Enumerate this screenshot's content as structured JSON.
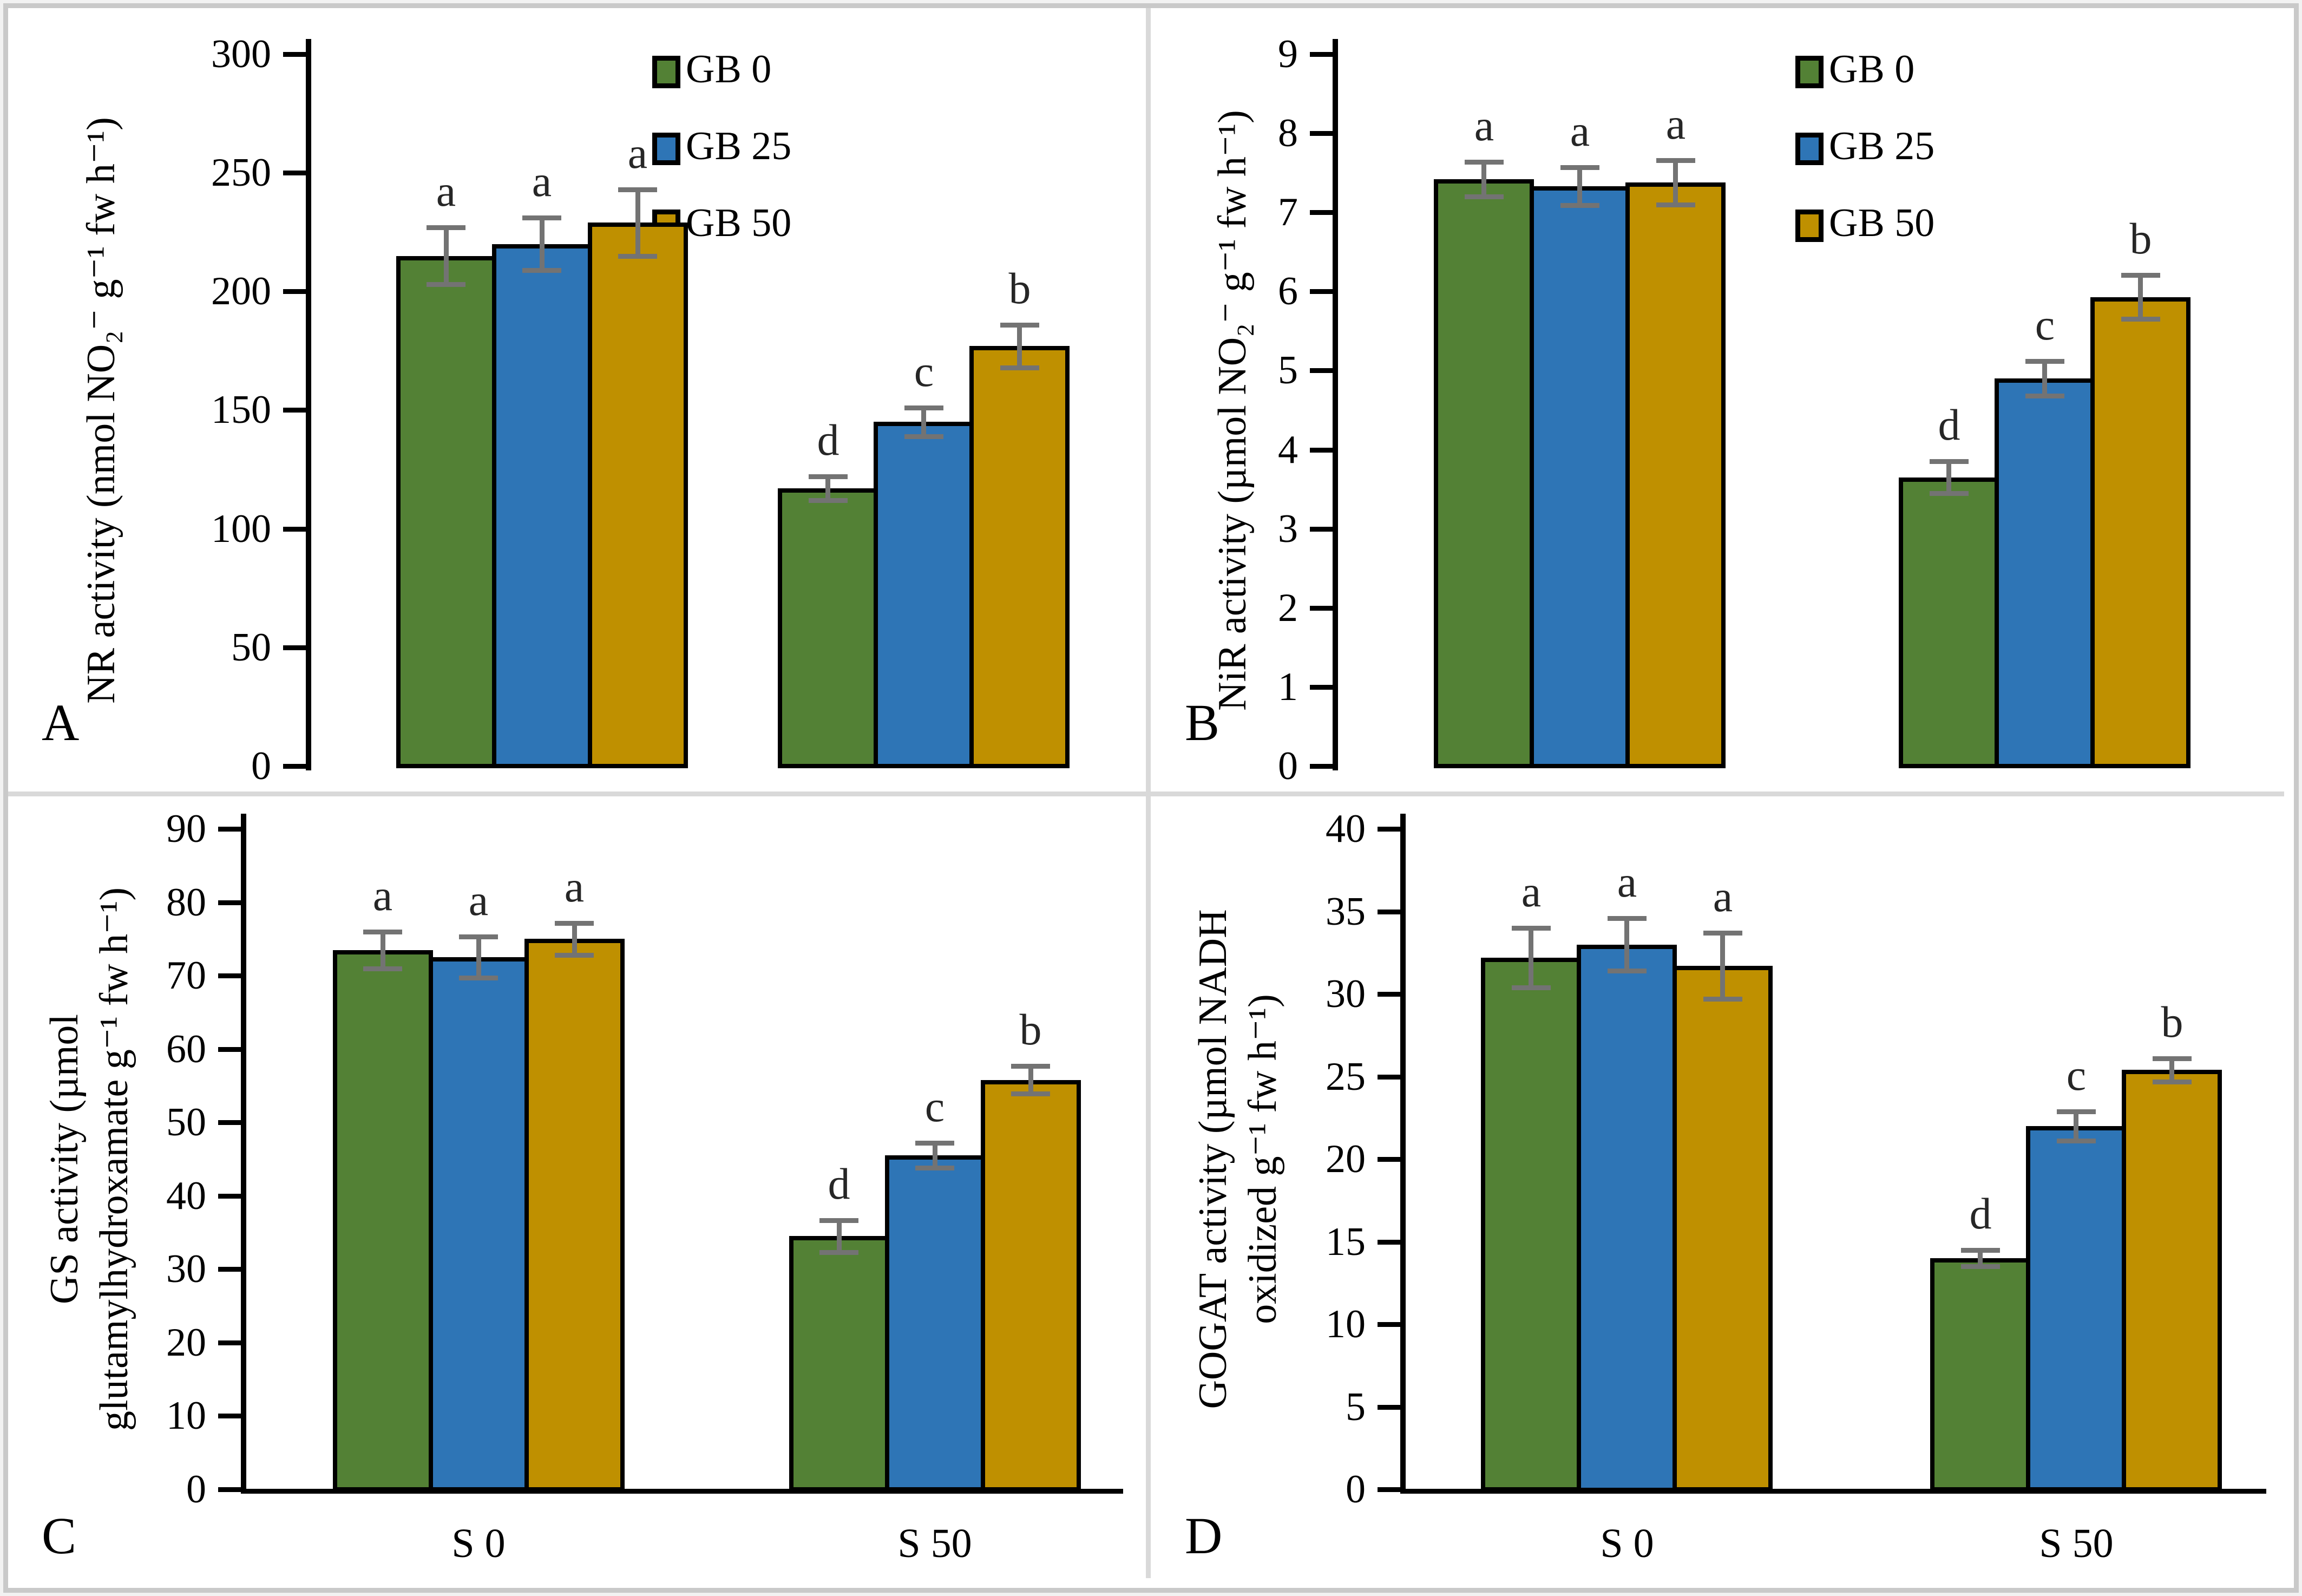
{
  "figure": {
    "panel_letters": [
      "A",
      "B",
      "C",
      "D"
    ],
    "legend": {
      "items": [
        {
          "label": "GB 0"
        },
        {
          "label": "GB 25"
        },
        {
          "label": "GB 50"
        }
      ]
    },
    "colors": {
      "gb0_green": "#538135",
      "gb25_blue": "#2E75B6",
      "gb50_gold": "#BF9000",
      "error_bar": "#737373",
      "significance_letter": "#262626",
      "axis": "#000000",
      "frame": "#c9c9c9"
    }
  },
  "chart_data": [
    {
      "type": "bar",
      "panel": "A",
      "ylabel_lines": [
        "NR activity (nmol NO₂⁻ g⁻¹ fw h⁻¹)"
      ],
      "ylim": [
        0,
        300
      ],
      "ytick_step": 50,
      "yticks": [
        0,
        50,
        100,
        150,
        200,
        250,
        300
      ],
      "categories": [
        "S 0",
        "S 50"
      ],
      "category_labels_shown": false,
      "xaxis_line_shown": false,
      "legend_shown": true,
      "grid": false,
      "series": [
        {
          "name": "GB 0",
          "values": [
            215,
            117
          ],
          "errors": [
            12,
            5
          ],
          "letters": [
            "a",
            "d"
          ]
        },
        {
          "name": "GB 25",
          "values": [
            220,
            145
          ],
          "errors": [
            11,
            6
          ],
          "letters": [
            "a",
            "c"
          ]
        },
        {
          "name": "GB 50",
          "values": [
            229,
            177
          ],
          "errors": [
            14,
            9
          ],
          "letters": [
            "a",
            "b"
          ]
        }
      ]
    },
    {
      "type": "bar",
      "panel": "B",
      "ylabel_lines": [
        "NiR activity (µmol NO₂⁻ g⁻¹ fw h⁻¹)"
      ],
      "ylim": [
        0,
        9
      ],
      "ytick_step": 1,
      "yticks": [
        0,
        1,
        2,
        3,
        4,
        5,
        6,
        7,
        8,
        9
      ],
      "categories": [
        "S 0",
        "S 50"
      ],
      "category_labels_shown": false,
      "xaxis_line_shown": false,
      "legend_shown": true,
      "grid": false,
      "series": [
        {
          "name": "GB 0",
          "values": [
            7.42,
            3.65
          ],
          "errors": [
            0.22,
            0.2
          ],
          "letters": [
            "a",
            "d"
          ]
        },
        {
          "name": "GB 25",
          "values": [
            7.33,
            4.9
          ],
          "errors": [
            0.24,
            0.22
          ],
          "letters": [
            "a",
            "c"
          ]
        },
        {
          "name": "GB 50",
          "values": [
            7.38,
            5.93
          ],
          "errors": [
            0.28,
            0.28
          ],
          "letters": [
            "a",
            "b"
          ]
        }
      ]
    },
    {
      "type": "bar",
      "panel": "C",
      "ylabel_lines": [
        "GS activity (µmol",
        "glutamylhydroxamate g⁻¹ fw h⁻¹)"
      ],
      "ylim": [
        0,
        90
      ],
      "ytick_step": 10,
      "yticks": [
        0,
        10,
        20,
        30,
        40,
        50,
        60,
        70,
        80,
        90
      ],
      "categories": [
        "S 0",
        "S 50"
      ],
      "category_labels_shown": true,
      "xaxis_line_shown": true,
      "legend_shown": false,
      "grid": false,
      "series": [
        {
          "name": "GB 0",
          "values": [
            73.5,
            34.5
          ],
          "errors": [
            2.5,
            2.2
          ],
          "letters": [
            "a",
            "d"
          ]
        },
        {
          "name": "GB 25",
          "values": [
            72.5,
            45.5
          ],
          "errors": [
            2.8,
            1.7
          ],
          "letters": [
            "a",
            "c"
          ]
        },
        {
          "name": "GB 50",
          "values": [
            75.0,
            55.8
          ],
          "errors": [
            2.2,
            1.9
          ],
          "letters": [
            "a",
            "b"
          ]
        }
      ]
    },
    {
      "type": "bar",
      "panel": "D",
      "ylabel_lines": [
        "GOGAT activity (µmol NADH",
        "oxidized g⁻¹ fw h⁻¹)"
      ],
      "ylim": [
        0,
        40
      ],
      "ytick_step": 5,
      "yticks": [
        0,
        5,
        10,
        15,
        20,
        25,
        30,
        35,
        40
      ],
      "categories": [
        "S 0",
        "S 50"
      ],
      "category_labels_shown": true,
      "xaxis_line_shown": true,
      "legend_shown": false,
      "grid": false,
      "series": [
        {
          "name": "GB 0",
          "values": [
            32.2,
            14.0
          ],
          "errors": [
            1.8,
            0.5
          ],
          "letters": [
            "a",
            "d"
          ]
        },
        {
          "name": "GB 25",
          "values": [
            33.0,
            22.0
          ],
          "errors": [
            1.6,
            0.9
          ],
          "letters": [
            "a",
            "c"
          ]
        },
        {
          "name": "GB 50",
          "values": [
            31.7,
            25.4
          ],
          "errors": [
            2.0,
            0.7
          ],
          "letters": [
            "a",
            "b"
          ]
        }
      ]
    }
  ]
}
